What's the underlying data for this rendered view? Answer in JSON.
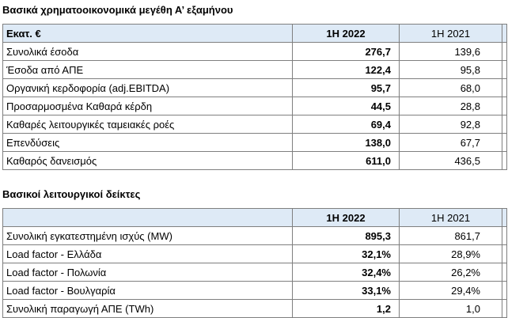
{
  "financial": {
    "title": "Βασικά χρηματοοικονομικά μεγέθη Α’ εξαμήνου",
    "header": {
      "label": "Εκατ. €",
      "col_2022": "1Η 2022",
      "col_2021": "1Η 2021"
    },
    "rows": [
      {
        "label": "Συνολικά έσοδα",
        "v2022": "276,7",
        "v2021": "139,6"
      },
      {
        "label": "Έσοδα από ΑΠΕ",
        "v2022": "122,4",
        "v2021": "95,8"
      },
      {
        "label": "Οργανική κερδοφορία (adj.EBITDA)",
        "v2022": "95,7",
        "v2021": "68,0"
      },
      {
        "label": "Προσαρμοσμένα Καθαρά κέρδη",
        "v2022": "44,5",
        "v2021": "28,8"
      },
      {
        "label": "Καθαρές λειτουργικές ταμειακές ροές",
        "v2022": "69,4",
        "v2021": "92,8"
      },
      {
        "label": "Επενδύσεις",
        "v2022": "138,0",
        "v2021": "67,7"
      },
      {
        "label": "Καθαρός δανεισμός",
        "v2022": "611,0",
        "v2021": "436,5"
      }
    ]
  },
  "operational": {
    "title": "Βασικοί λειτουργικοί δείκτες",
    "header": {
      "label": "",
      "col_2022": "1Η 2022",
      "col_2021": "1Η 2021"
    },
    "rows": [
      {
        "label": "Συνολική εγκατεστημένη ισχύς (MW)",
        "v2022": "895,3",
        "v2021": "861,7"
      },
      {
        "label": "Load factor - Ελλάδα",
        "v2022": "32,1%",
        "v2021": "28,9%"
      },
      {
        "label": "Load factor - Πολωνία",
        "v2022": "32,4%",
        "v2021": "26,2%"
      },
      {
        "label": "Load factor - Βουλγαρία",
        "v2022": "33,1%",
        "v2021": "29,4%"
      },
      {
        "label": "Συνολική παραγωγή ΑΠΕ (TWh)",
        "v2022": "1,2",
        "v2021": "1,0"
      }
    ]
  }
}
